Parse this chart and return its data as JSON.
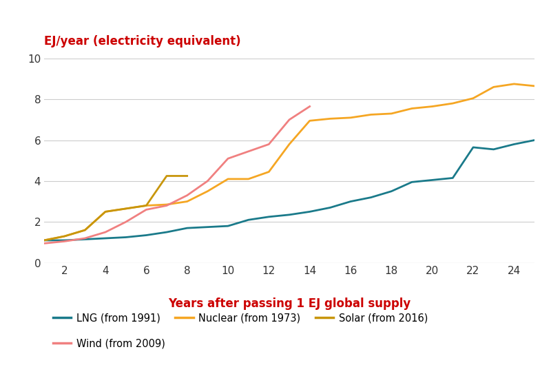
{
  "title_ylabel": "EJ/year (electricity equivalent)",
  "xlabel": "Years after passing 1 EJ global supply",
  "ylabel_color": "#cc0000",
  "xlabel_color": "#cc0000",
  "background_color": "#ffffff",
  "grid_color": "#cccccc",
  "ylim": [
    0,
    10
  ],
  "xlim": [
    1,
    25
  ],
  "yticks": [
    0,
    2,
    4,
    6,
    8,
    10
  ],
  "xticks": [
    2,
    4,
    6,
    8,
    10,
    12,
    14,
    16,
    18,
    20,
    22,
    24
  ],
  "series": {
    "LNG": {
      "label": "LNG (from 1991)",
      "color": "#1a7a8a",
      "x": [
        1,
        2,
        3,
        4,
        5,
        6,
        7,
        8,
        9,
        10,
        11,
        12,
        13,
        14,
        15,
        16,
        17,
        18,
        19,
        20,
        21,
        22,
        23,
        24,
        25
      ],
      "y": [
        1.1,
        1.1,
        1.15,
        1.2,
        1.25,
        1.35,
        1.5,
        1.7,
        1.75,
        1.8,
        2.1,
        2.25,
        2.35,
        2.5,
        2.7,
        3.0,
        3.2,
        3.5,
        3.95,
        4.05,
        4.15,
        5.65,
        5.55,
        5.8,
        6.0
      ]
    },
    "Nuclear": {
      "label": "Nuclear (from 1973)",
      "color": "#f5a623",
      "x": [
        1,
        2,
        3,
        4,
        5,
        6,
        7,
        8,
        9,
        10,
        11,
        12,
        13,
        14,
        15,
        16,
        17,
        18,
        19,
        20,
        21,
        22,
        23,
        24,
        25
      ],
      "y": [
        1.1,
        1.3,
        1.6,
        2.5,
        2.65,
        2.8,
        2.85,
        3.0,
        3.5,
        4.1,
        4.1,
        4.45,
        5.8,
        6.95,
        7.05,
        7.1,
        7.25,
        7.3,
        7.55,
        7.65,
        7.8,
        8.05,
        8.6,
        8.75,
        8.65
      ]
    },
    "Solar": {
      "label": "Solar (from 2016)",
      "color": "#c8960c",
      "x": [
        1,
        2,
        3,
        4,
        5,
        6,
        7,
        8
      ],
      "y": [
        1.1,
        1.3,
        1.6,
        2.5,
        2.65,
        2.8,
        4.25,
        4.25
      ]
    },
    "Wind": {
      "label": "Wind (from 2009)",
      "color": "#f08080",
      "x": [
        1,
        2,
        3,
        4,
        5,
        6,
        7,
        8,
        9,
        10,
        11,
        12,
        13,
        14
      ],
      "y": [
        0.95,
        1.05,
        1.2,
        1.5,
        2.0,
        2.6,
        2.8,
        3.3,
        4.0,
        5.1,
        5.45,
        5.8,
        7.0,
        7.65
      ]
    }
  },
  "legend": [
    {
      "label": "LNG (from 1991)",
      "color": "#1a7a8a"
    },
    {
      "label": "Nuclear (from 1973)",
      "color": "#f5a623"
    },
    {
      "label": "Solar (from 2016)",
      "color": "#c8960c"
    },
    {
      "label": "Wind (from 2009)",
      "color": "#f08080"
    }
  ]
}
